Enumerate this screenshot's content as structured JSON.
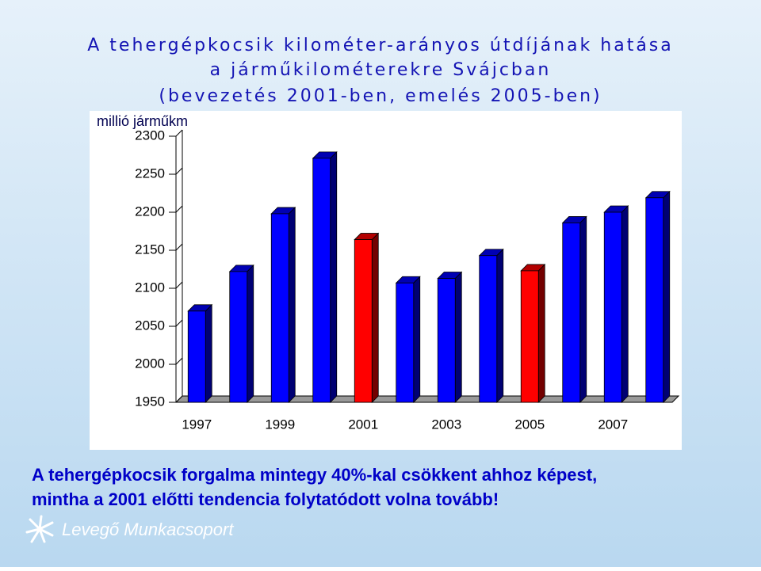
{
  "chart_data": {
    "type": "bar3d",
    "title_lines": [
      "A tehergépkocsik kilométer-arányos útdíjának hatása",
      "a járműkilométerekre Svájcban",
      "(bevezetés 2001-ben, emelés 2005-ben)"
    ],
    "y_label": "millió járműkm",
    "categories": [
      "1997",
      null,
      "1999",
      null,
      "2001",
      null,
      "2003",
      null,
      "2005",
      null,
      "2007",
      null
    ],
    "values": [
      2070,
      2122,
      2198,
      2271,
      2164,
      2107,
      2113,
      2143,
      2123,
      2186,
      2200,
      2219
    ],
    "colors": [
      "#0000ff",
      "#0000ff",
      "#0000ff",
      "#0000ff",
      "#ff0000",
      "#0000ff",
      "#0000ff",
      "#0000ff",
      "#ff0000",
      "#0000ff",
      "#0000ff",
      "#0000ff"
    ],
    "ylim": [
      1950,
      2300
    ],
    "yticks": [
      1950,
      2000,
      2050,
      2100,
      2150,
      2200,
      2250,
      2300
    ],
    "grid": false
  },
  "caption": [
    "A tehergépkocsik forgalma mintegy 40%-kal csökkent ahhoz képest,",
    "mintha a 2001 előtti tendencia folytatódott volna tovább!"
  ],
  "logo": "Levegő Munkacsoport"
}
